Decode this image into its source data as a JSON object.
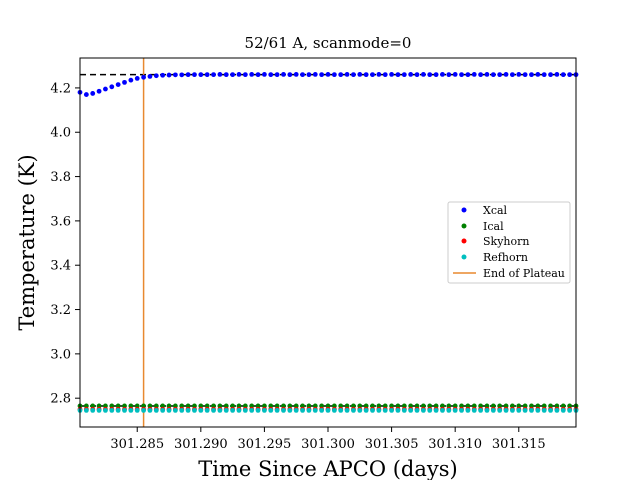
{
  "chart_data": {
    "type": "scatter",
    "title": "52/61 A, scanmode=0",
    "xlabel": "Time Since APCO (days)",
    "ylabel": "Temperature (K)",
    "xlim": [
      301.2805,
      301.3195
    ],
    "ylim": [
      2.67,
      4.335
    ],
    "x_tick_values": [
      301.285,
      301.29,
      301.295,
      301.3,
      301.305,
      301.31,
      301.315
    ],
    "x_tick_labels": [
      "301.285",
      "301.290",
      "301.295",
      "301.300",
      "301.305",
      "301.310",
      "301.315"
    ],
    "y_tick_values": [
      2.8,
      3.0,
      3.2,
      3.4,
      3.6,
      3.8,
      4.0,
      4.2
    ],
    "y_tick_labels": [
      "2.8",
      "3.0",
      "3.2",
      "3.4",
      "3.6",
      "3.8",
      "4.0",
      "4.2"
    ],
    "legend_position": "center-right",
    "x_start": 301.2805,
    "x_step": 0.0005,
    "series": [
      {
        "name": "Xcal",
        "color": "#0000ff",
        "values": [
          4.18,
          4.17,
          4.175,
          4.185,
          4.195,
          4.205,
          4.215,
          4.225,
          4.235,
          4.243,
          4.248,
          4.252,
          4.255,
          4.257,
          4.258,
          4.259,
          4.259,
          4.26,
          4.26,
          4.26,
          4.26,
          4.26,
          4.261,
          4.26,
          4.26,
          4.261,
          4.26,
          4.261,
          4.26,
          4.261,
          4.26,
          4.26,
          4.261,
          4.26,
          4.261,
          4.26,
          4.26,
          4.261,
          4.26,
          4.261,
          4.26,
          4.26,
          4.261,
          4.26,
          4.261,
          4.26,
          4.26,
          4.261,
          4.26,
          4.261,
          4.26,
          4.26,
          4.261,
          4.26,
          4.261,
          4.26,
          4.26,
          4.261,
          4.26,
          4.261,
          4.26,
          4.26,
          4.261,
          4.26,
          4.261,
          4.26,
          4.26,
          4.261,
          4.26,
          4.261,
          4.26,
          4.26,
          4.261,
          4.26,
          4.26,
          4.261,
          4.26,
          4.26,
          4.26
        ]
      },
      {
        "name": "Ical",
        "color": "#008000",
        "values": [
          2.765,
          2.765,
          2.765,
          2.765,
          2.765,
          2.765,
          2.765,
          2.765,
          2.765,
          2.765,
          2.765,
          2.765,
          2.765,
          2.765,
          2.765,
          2.765,
          2.765,
          2.765,
          2.765,
          2.765,
          2.765,
          2.765,
          2.765,
          2.765,
          2.765,
          2.765,
          2.765,
          2.765,
          2.765,
          2.765,
          2.765,
          2.765,
          2.765,
          2.765,
          2.765,
          2.765,
          2.765,
          2.765,
          2.765,
          2.765,
          2.765,
          2.765,
          2.765,
          2.765,
          2.765,
          2.765,
          2.765,
          2.765,
          2.765,
          2.765,
          2.765,
          2.765,
          2.765,
          2.765,
          2.765,
          2.765,
          2.765,
          2.765,
          2.765,
          2.765,
          2.765,
          2.765,
          2.765,
          2.765,
          2.765,
          2.765,
          2.765,
          2.765,
          2.765,
          2.765,
          2.765,
          2.765,
          2.765,
          2.765,
          2.765,
          2.765,
          2.765,
          2.765,
          2.765
        ]
      },
      {
        "name": "Skyhorn",
        "color": "#ff0000",
        "values": [
          2.75,
          2.75,
          2.75,
          2.75,
          2.75,
          2.75,
          2.75,
          2.75,
          2.75,
          2.75,
          2.75,
          2.75,
          2.75,
          2.75,
          2.75,
          2.75,
          2.75,
          2.75,
          2.75,
          2.75,
          2.75,
          2.75,
          2.75,
          2.75,
          2.75,
          2.75,
          2.75,
          2.75,
          2.75,
          2.75,
          2.75,
          2.75,
          2.75,
          2.75,
          2.75,
          2.75,
          2.75,
          2.75,
          2.75,
          2.75,
          2.75,
          2.75,
          2.75,
          2.75,
          2.75,
          2.75,
          2.75,
          2.75,
          2.75,
          2.75,
          2.75,
          2.75,
          2.75,
          2.75,
          2.75,
          2.75,
          2.75,
          2.75,
          2.75,
          2.75,
          2.75,
          2.75,
          2.75,
          2.75,
          2.75,
          2.75,
          2.75,
          2.75,
          2.75,
          2.75,
          2.75,
          2.75,
          2.75,
          2.75,
          2.75,
          2.75,
          2.75,
          2.75,
          2.75
        ]
      },
      {
        "name": "Refhorn",
        "color": "#00bfbf",
        "values": [
          2.745,
          2.745,
          2.745,
          2.745,
          2.745,
          2.745,
          2.745,
          2.745,
          2.745,
          2.745,
          2.745,
          2.745,
          2.745,
          2.745,
          2.745,
          2.745,
          2.745,
          2.745,
          2.745,
          2.745,
          2.745,
          2.745,
          2.745,
          2.745,
          2.745,
          2.745,
          2.745,
          2.745,
          2.745,
          2.745,
          2.745,
          2.745,
          2.745,
          2.745,
          2.745,
          2.745,
          2.745,
          2.745,
          2.745,
          2.745,
          2.745,
          2.745,
          2.745,
          2.745,
          2.745,
          2.745,
          2.745,
          2.745,
          2.745,
          2.745,
          2.745,
          2.745,
          2.745,
          2.745,
          2.745,
          2.745,
          2.745,
          2.745,
          2.745,
          2.745,
          2.745,
          2.745,
          2.745,
          2.745,
          2.745,
          2.745,
          2.745,
          2.745,
          2.745,
          2.745,
          2.745,
          2.745,
          2.745,
          2.745,
          2.745,
          2.745,
          2.745,
          2.745,
          2.745
        ]
      }
    ],
    "end_of_plateau": {
      "name": "End of Plateau",
      "x": 301.2855,
      "color": "#e8892f"
    },
    "reference_lines": [
      {
        "y": 4.26,
        "color": "#000000",
        "style": "dashed"
      },
      {
        "y": 2.765,
        "color": "#000000",
        "style": "dashed"
      }
    ]
  }
}
